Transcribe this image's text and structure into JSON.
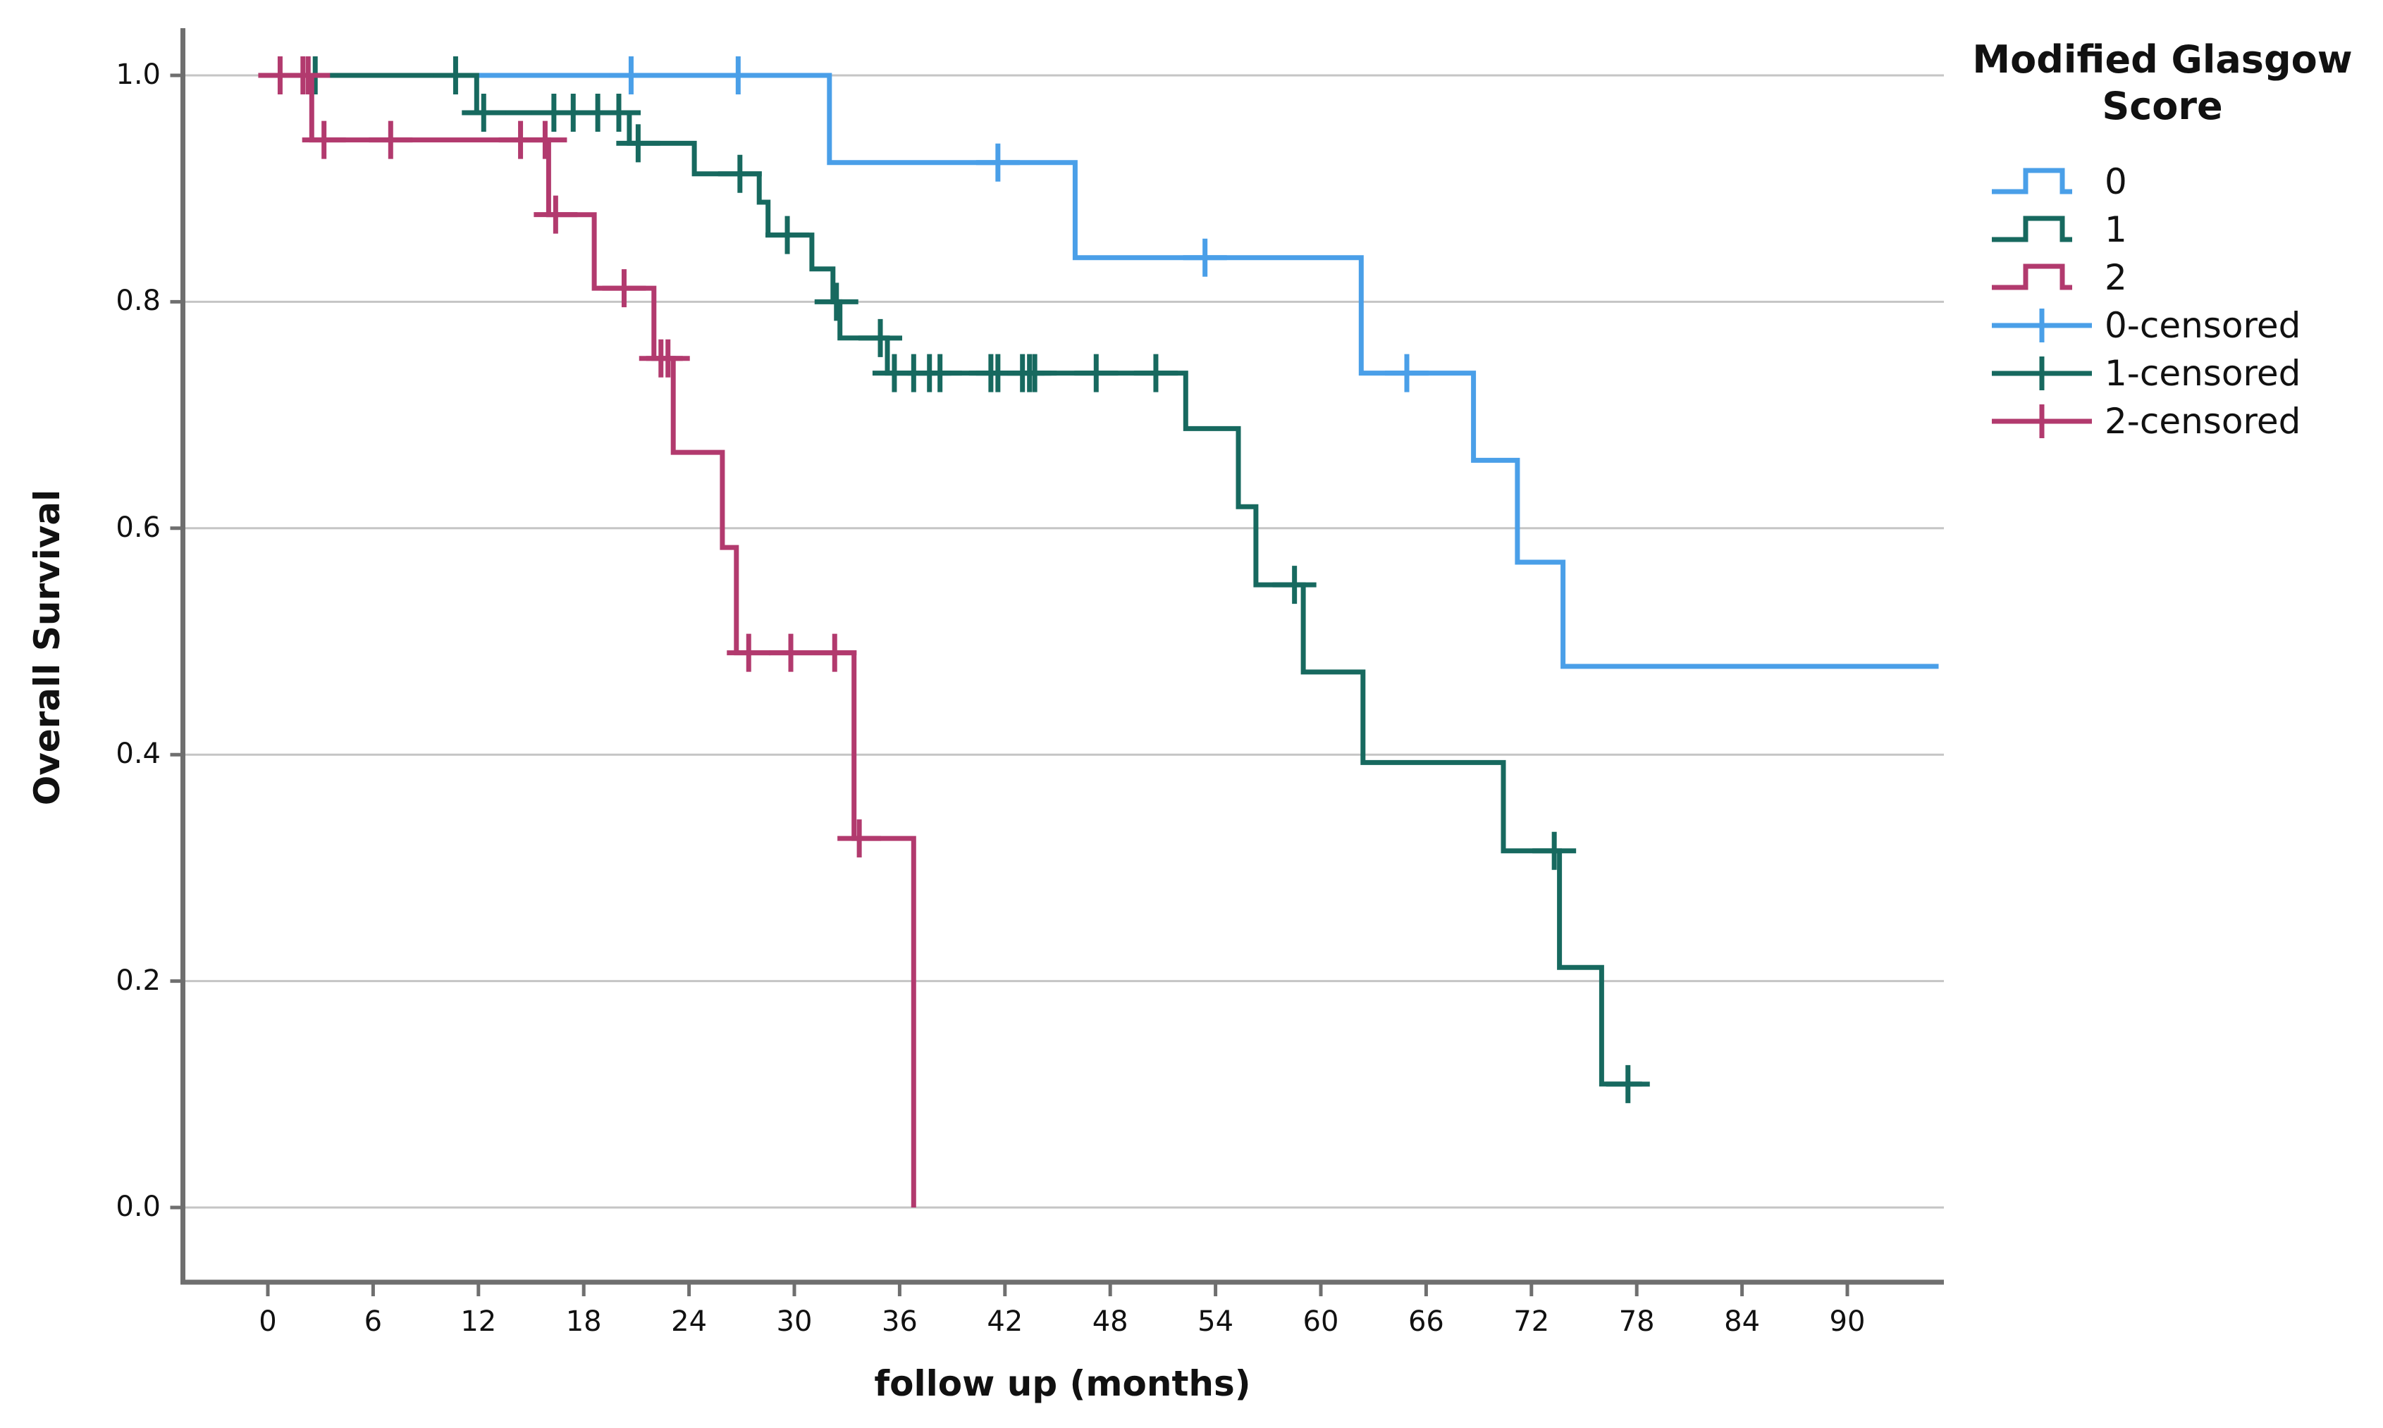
{
  "figure": {
    "background": "#ffffff",
    "grid_color": "#c5c5c5",
    "axis_color": "#6f6f6f",
    "text_color": "#111111"
  },
  "chart_data": {
    "type": "line",
    "subtype": "kaplan-meier-step",
    "title": "",
    "xlabel": "follow up (months)",
    "ylabel": "Overall Survival",
    "xlim": [
      -4.8,
      95.5
    ],
    "ylim": [
      0.0,
      1.0
    ],
    "x_ticks": [
      0,
      6,
      12,
      18,
      24,
      30,
      36,
      42,
      48,
      54,
      60,
      66,
      72,
      78,
      84,
      90
    ],
    "y_ticks": [
      {
        "v": 0.0,
        "label": "0.0"
      },
      {
        "v": 0.2,
        "label": "0.2"
      },
      {
        "v": 0.4,
        "label": "0.4"
      },
      {
        "v": 0.6,
        "label": "0.6"
      },
      {
        "v": 0.8,
        "label": "0.8"
      },
      {
        "v": 1.0,
        "label": "1.0"
      }
    ],
    "grid": "horizontal",
    "legend_position": "right",
    "legend_title_line1": "Modified Glasgow",
    "legend_title_line2": "Score",
    "series": [
      {
        "name": "0",
        "color": "#4a9fe8",
        "steps": [
          [
            0,
            1.0
          ],
          [
            32,
            1.0
          ],
          [
            32,
            0.923
          ],
          [
            46,
            0.923
          ],
          [
            46,
            0.839
          ],
          [
            62.3,
            0.839
          ],
          [
            62.3,
            0.737
          ],
          [
            68.7,
            0.737
          ],
          [
            68.7,
            0.66
          ],
          [
            71.2,
            0.66
          ],
          [
            71.2,
            0.57
          ],
          [
            73.8,
            0.57
          ],
          [
            73.8,
            0.478
          ],
          [
            95.2,
            0.478
          ]
        ],
        "censored": [
          [
            20.7,
            1.0
          ],
          [
            26.8,
            1.0
          ],
          [
            41.6,
            0.923
          ],
          [
            53.4,
            0.839
          ],
          [
            64.9,
            0.737
          ]
        ]
      },
      {
        "name": "1",
        "color": "#17695f",
        "steps": [
          [
            0,
            1.0
          ],
          [
            11.9,
            1.0
          ],
          [
            11.9,
            0.967
          ],
          [
            20.6,
            0.967
          ],
          [
            20.6,
            0.94
          ],
          [
            24.3,
            0.94
          ],
          [
            24.3,
            0.913
          ],
          [
            28.0,
            0.913
          ],
          [
            28.0,
            0.888
          ],
          [
            28.5,
            0.888
          ],
          [
            28.5,
            0.859
          ],
          [
            31.0,
            0.859
          ],
          [
            31.0,
            0.829
          ],
          [
            32.2,
            0.829
          ],
          [
            32.2,
            0.8
          ],
          [
            32.6,
            0.8
          ],
          [
            32.6,
            0.768
          ],
          [
            35.3,
            0.768
          ],
          [
            35.3,
            0.737
          ],
          [
            52.3,
            0.737
          ],
          [
            52.3,
            0.688
          ],
          [
            55.3,
            0.688
          ],
          [
            55.3,
            0.619
          ],
          [
            56.3,
            0.619
          ],
          [
            56.3,
            0.55
          ],
          [
            59.0,
            0.55
          ],
          [
            59.0,
            0.473
          ],
          [
            62.4,
            0.473
          ],
          [
            62.4,
            0.393
          ],
          [
            70.4,
            0.393
          ],
          [
            70.4,
            0.315
          ],
          [
            73.6,
            0.315
          ],
          [
            73.6,
            0.212
          ],
          [
            76.0,
            0.212
          ],
          [
            76.0,
            0.109
          ],
          [
            78.3,
            0.109
          ]
        ],
        "censored": [
          [
            2.7,
            1.0
          ],
          [
            10.7,
            1.0
          ],
          [
            12.3,
            0.967
          ],
          [
            16.3,
            0.967
          ],
          [
            17.4,
            0.967
          ],
          [
            18.8,
            0.967
          ],
          [
            20.0,
            0.967
          ],
          [
            21.1,
            0.94
          ],
          [
            26.9,
            0.913
          ],
          [
            29.6,
            0.859
          ],
          [
            32.4,
            0.8
          ],
          [
            34.9,
            0.768
          ],
          [
            35.7,
            0.737
          ],
          [
            36.8,
            0.737
          ],
          [
            37.7,
            0.737
          ],
          [
            38.3,
            0.737
          ],
          [
            41.2,
            0.737
          ],
          [
            41.6,
            0.737
          ],
          [
            43.0,
            0.737
          ],
          [
            43.4,
            0.737
          ],
          [
            43.7,
            0.737
          ],
          [
            47.2,
            0.737
          ],
          [
            50.6,
            0.737
          ],
          [
            58.5,
            0.55
          ],
          [
            73.3,
            0.315
          ],
          [
            77.5,
            0.109
          ]
        ]
      },
      {
        "name": "2",
        "color": "#b23a6e",
        "steps": [
          [
            0,
            1.0
          ],
          [
            2.5,
            1.0
          ],
          [
            2.5,
            0.943
          ],
          [
            16.0,
            0.943
          ],
          [
            16.0,
            0.877
          ],
          [
            18.6,
            0.877
          ],
          [
            18.6,
            0.812
          ],
          [
            22.0,
            0.812
          ],
          [
            22.0,
            0.75
          ],
          [
            23.1,
            0.75
          ],
          [
            23.1,
            0.667
          ],
          [
            25.9,
            0.667
          ],
          [
            25.9,
            0.583
          ],
          [
            26.7,
            0.583
          ],
          [
            26.7,
            0.49
          ],
          [
            33.4,
            0.49
          ],
          [
            33.4,
            0.326
          ],
          [
            36.8,
            0.326
          ],
          [
            36.8,
            0.0
          ]
        ],
        "censored": [
          [
            0.7,
            1.0
          ],
          [
            2.0,
            1.0
          ],
          [
            2.3,
            1.0
          ],
          [
            3.2,
            0.943
          ],
          [
            7.0,
            0.943
          ],
          [
            14.4,
            0.943
          ],
          [
            15.8,
            0.943
          ],
          [
            16.4,
            0.877
          ],
          [
            20.3,
            0.812
          ],
          [
            22.4,
            0.75
          ],
          [
            22.8,
            0.75
          ],
          [
            27.4,
            0.49
          ],
          [
            29.8,
            0.49
          ],
          [
            32.3,
            0.49
          ],
          [
            33.7,
            0.326
          ]
        ]
      }
    ]
  },
  "legend": {
    "items": [
      {
        "label": "0",
        "series": "0",
        "glyph": "step"
      },
      {
        "label": "1",
        "series": "1",
        "glyph": "step"
      },
      {
        "label": "2",
        "series": "2",
        "glyph": "step"
      },
      {
        "label": "0-censored",
        "series": "0",
        "glyph": "censor"
      },
      {
        "label": "1-censored",
        "series": "1",
        "glyph": "censor"
      },
      {
        "label": "2-censored",
        "series": "2",
        "glyph": "censor"
      }
    ]
  }
}
